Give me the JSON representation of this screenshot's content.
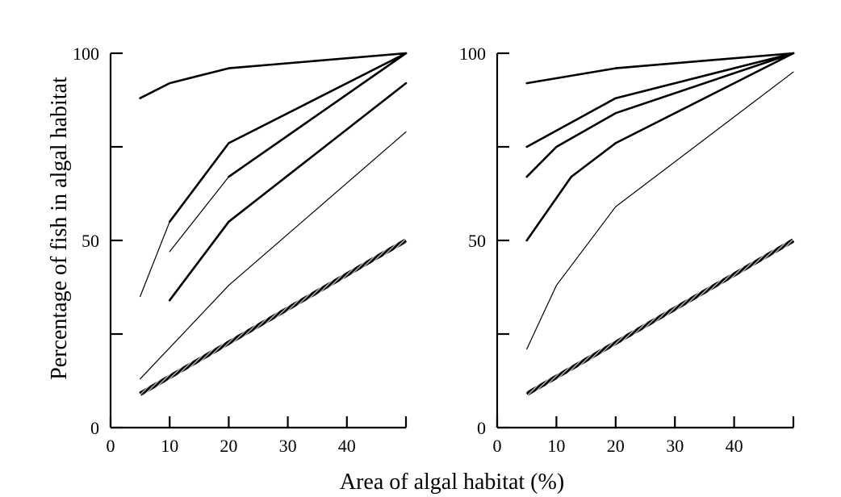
{
  "figure": {
    "ylabel": "Percentage of fish in algal habitat",
    "xlabel": "Area of algal habitat (%)"
  },
  "chart_data": [
    {
      "type": "line",
      "title": "",
      "xlabel": "Area of algal habitat (%)",
      "ylabel": "Percentage of fish in algal habitat",
      "xlim": [
        0,
        50
      ],
      "ylim": [
        0,
        100
      ],
      "xticks": [
        0,
        10,
        20,
        30,
        40,
        50
      ],
      "xtick_labels": [
        "0",
        "10",
        "20",
        "30",
        "40"
      ],
      "yticks": [
        0,
        25,
        50,
        75,
        100
      ],
      "ytick_labels": {
        "0": "0",
        "50": "50",
        "100": "100"
      },
      "grid": false,
      "series": [
        {
          "x": [
            5,
            10,
            20,
            50
          ],
          "y": [
            88,
            92,
            96,
            100
          ],
          "weight": "thick"
        },
        {
          "x": [
            10,
            20,
            50
          ],
          "y": [
            55,
            76,
            100
          ],
          "weight": "thick"
        },
        {
          "x": [
            5,
            10
          ],
          "y": [
            35,
            55
          ],
          "weight": "thin"
        },
        {
          "x": [
            10,
            20
          ],
          "y": [
            47,
            67
          ],
          "weight": "thin"
        },
        {
          "x": [
            20,
            50
          ],
          "y": [
            67,
            100
          ],
          "weight": "thick"
        },
        {
          "x": [
            10,
            20,
            50
          ],
          "y": [
            34,
            55,
            92
          ],
          "weight": "thick"
        },
        {
          "x": [
            5,
            20,
            50
          ],
          "y": [
            13,
            38,
            79
          ],
          "weight": "thin"
        },
        {
          "x": [
            5,
            50
          ],
          "y": [
            9,
            50
          ],
          "weight": "hatched"
        }
      ]
    },
    {
      "type": "line",
      "title": "",
      "xlabel": "Area of algal habitat (%)",
      "ylabel": "Percentage of fish in algal habitat",
      "xlim": [
        0,
        50
      ],
      "ylim": [
        0,
        100
      ],
      "xticks": [
        0,
        10,
        20,
        30,
        40,
        50
      ],
      "xtick_labels": [
        "0",
        "10",
        "20",
        "30",
        "40"
      ],
      "yticks": [
        0,
        25,
        50,
        75,
        100
      ],
      "ytick_labels": {
        "0": "0",
        "50": "50",
        "100": "100"
      },
      "grid": false,
      "series": [
        {
          "x": [
            5,
            20,
            50
          ],
          "y": [
            92,
            96,
            100
          ],
          "weight": "thick"
        },
        {
          "x": [
            5,
            20,
            50
          ],
          "y": [
            75,
            88,
            100
          ],
          "weight": "thick"
        },
        {
          "x": [
            5,
            10,
            20,
            50
          ],
          "y": [
            67,
            75,
            84,
            100
          ],
          "weight": "thick"
        },
        {
          "x": [
            5,
            12.5,
            20,
            50
          ],
          "y": [
            50,
            67,
            76,
            100
          ],
          "weight": "thick"
        },
        {
          "x": [
            5,
            10,
            20,
            50
          ],
          "y": [
            21,
            38,
            59,
            95
          ],
          "weight": "thin"
        },
        {
          "x": [
            5,
            50
          ],
          "y": [
            9,
            50
          ],
          "weight": "hatched"
        }
      ]
    }
  ]
}
